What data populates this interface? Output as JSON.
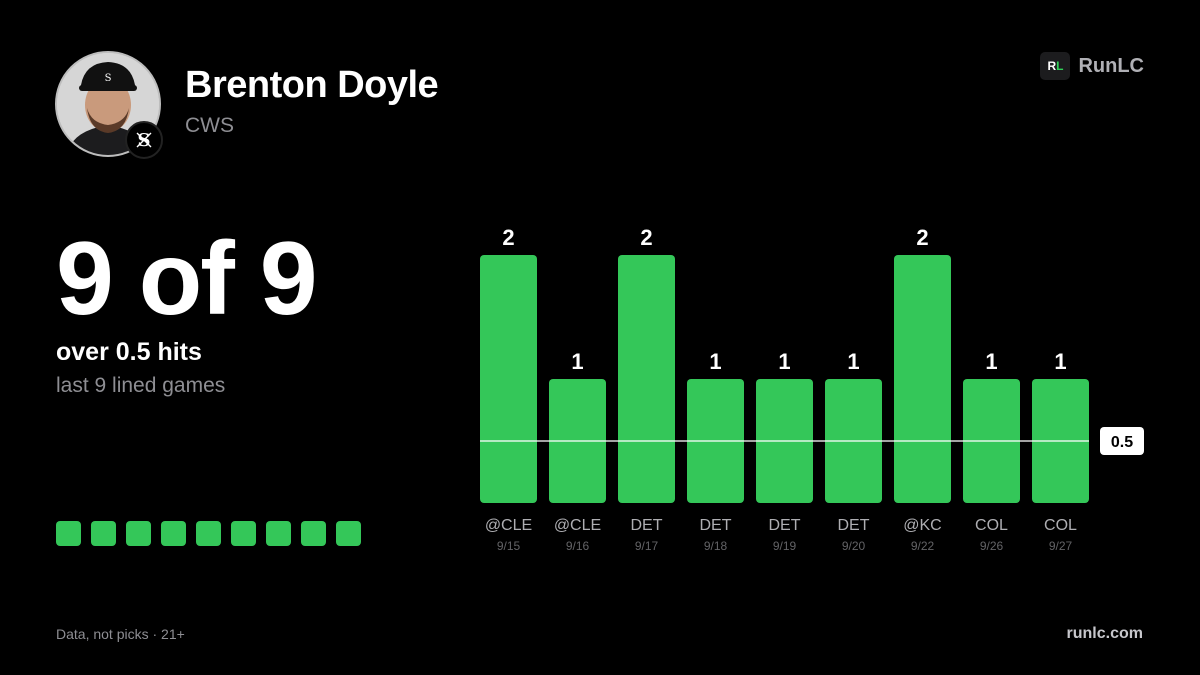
{
  "player": {
    "name": "Brenton Doyle",
    "team": "CWS"
  },
  "brand": {
    "mark_r": "R",
    "mark_l": "L",
    "name": "RunLC"
  },
  "summary": {
    "headline": "9 of 9",
    "label": "over 0.5 hits",
    "sub": "last 9 lined games",
    "streak": [
      true,
      true,
      true,
      true,
      true,
      true,
      true,
      true,
      true
    ]
  },
  "footer": {
    "disclaimer": "Data, not picks · 21+",
    "site": "runlc.com"
  },
  "colors": {
    "background": "#000000",
    "bar": "#34c759",
    "muted_text": "#8e8e93",
    "line_label_bg": "#ffffff"
  },
  "chart_data": {
    "type": "bar",
    "categories": [
      "@CLE",
      "@CLE",
      "DET",
      "DET",
      "DET",
      "DET",
      "@KC",
      "COL",
      "COL"
    ],
    "dates": [
      "9/15",
      "9/16",
      "9/17",
      "9/18",
      "9/19",
      "9/20",
      "9/22",
      "9/26",
      "9/27"
    ],
    "values": [
      2,
      1,
      2,
      1,
      1,
      1,
      2,
      1,
      1
    ],
    "ylim": [
      0,
      2
    ],
    "threshold": 0.5,
    "threshold_label": "0.5",
    "grid": false,
    "legend": "none",
    "title": "",
    "xlabel": "",
    "ylabel": ""
  }
}
